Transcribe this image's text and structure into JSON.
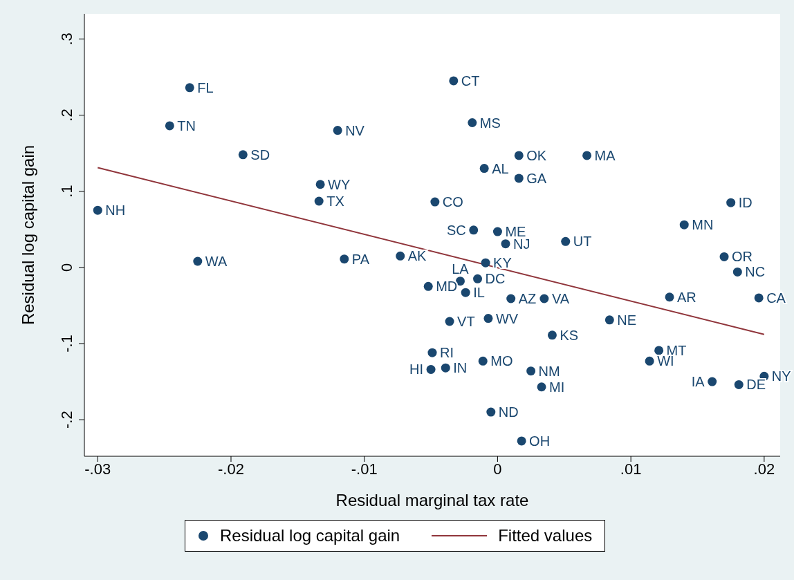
{
  "chart_data": {
    "type": "scatter",
    "xlabel": "Residual marginal tax rate",
    "ylabel": "Residual log capital gain",
    "xlim": [
      -0.031,
      0.0212
    ],
    "ylim": [
      -0.248,
      0.333
    ],
    "xticks": [
      {
        "value": -0.03,
        "label": "-.03"
      },
      {
        "value": -0.02,
        "label": "-.02"
      },
      {
        "value": -0.01,
        "label": "-.01"
      },
      0,
      {
        "value": 0.01,
        "label": ".01"
      },
      {
        "value": 0.02,
        "label": ".02"
      }
    ],
    "yticks": [
      {
        "value": -0.2,
        "label": "-.2"
      },
      {
        "value": -0.1,
        "label": "-.1"
      },
      0,
      {
        "value": 0.1,
        "label": ".1"
      },
      {
        "value": 0.2,
        "label": ".2"
      },
      {
        "value": 0.3,
        "label": ".3"
      }
    ],
    "grid": false,
    "legend": "bottom",
    "series": [
      {
        "type": "scatter",
        "name": "Residual log capital gain",
        "color": "#1a476f",
        "marker": "circle",
        "x": [
          -0.0231,
          -0.0246,
          -0.012,
          -0.0191,
          -0.0133,
          -0.0134,
          -0.03,
          -0.0225,
          -0.0115,
          -0.0073,
          -0.0033,
          -0.0019,
          0.0016,
          0.0067,
          -0.001,
          0.0016,
          -0.0047,
          -0.0018,
          0.0,
          0.0006,
          0.0051,
          0.0175,
          0.014,
          0.017,
          0.018,
          -0.0009,
          -0.0015,
          -0.0028,
          -0.0052,
          -0.0024,
          0.001,
          0.0035,
          0.0129,
          0.0196,
          -0.0036,
          -0.0007,
          0.0084,
          0.0041,
          0.0121,
          0.0114,
          -0.0049,
          -0.0039,
          -0.005,
          -0.0011,
          0.0025,
          0.0033,
          0.0161,
          0.0181,
          0.02,
          -0.0005,
          0.0018
        ],
        "values": [
          0.236,
          0.186,
          0.18,
          0.148,
          0.109,
          0.087,
          0.075,
          0.008,
          0.011,
          0.015,
          0.245,
          0.19,
          0.147,
          0.147,
          0.13,
          0.117,
          0.086,
          0.049,
          0.047,
          0.031,
          0.034,
          0.085,
          0.056,
          0.014,
          -0.006,
          0.006,
          -0.015,
          -0.018,
          -0.025,
          -0.033,
          -0.041,
          -0.041,
          -0.039,
          -0.04,
          -0.071,
          -0.067,
          -0.069,
          -0.089,
          -0.109,
          -0.123,
          -0.112,
          -0.132,
          -0.134,
          -0.123,
          -0.136,
          -0.157,
          -0.15,
          -0.154,
          -0.143,
          -0.19,
          -0.228
        ],
        "value_labels": [
          "FL",
          "TN",
          "NV",
          "SD",
          "WY",
          "TX",
          "NH",
          "WA",
          "PA",
          "AK",
          "CT",
          "MS",
          "OK",
          "MA",
          "AL",
          "GA",
          "CO",
          "SC",
          "ME",
          "NJ",
          "UT",
          "ID",
          "MN",
          "OR",
          "NC",
          "KY",
          "DC",
          "LA",
          "MD",
          "IL",
          "AZ",
          "VA",
          "AR",
          "CA",
          "VT",
          "WV",
          "NE",
          "KS",
          "MT",
          "WI",
          "RI",
          "IN",
          "HI",
          "MO",
          "NM",
          "MI",
          "IA",
          "DE",
          "NY",
          "ND",
          "OH"
        ]
      },
      {
        "type": "line",
        "name": "Fitted values",
        "color": "#90353b",
        "x": [
          -0.03,
          0.02
        ],
        "values": [
          0.131,
          -0.088
        ]
      }
    ]
  }
}
